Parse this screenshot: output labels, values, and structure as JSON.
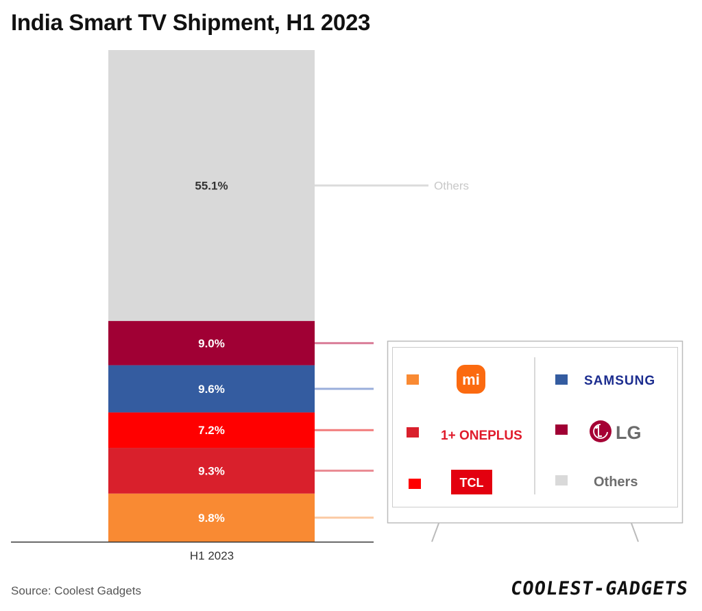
{
  "title": "India Smart TV Shipment, H1 2023",
  "source": "Source: Coolest Gadgets",
  "watermark": {
    "part1": "COOLEST",
    "sep": "-",
    "part2": "GADGETS"
  },
  "chart_data": {
    "type": "bar",
    "stacked": true,
    "categories": [
      "H1 2023"
    ],
    "unit": "%",
    "series": [
      {
        "name": "Xiaomi",
        "values": [
          9.8
        ],
        "label": "9.8%",
        "color": "#f98a33",
        "legend": "mi"
      },
      {
        "name": "OnePlus",
        "values": [
          9.3
        ],
        "label": "9.3%",
        "color": "#d9202c",
        "legend": "1+ ONEPLUS"
      },
      {
        "name": "TCL",
        "values": [
          7.2
        ],
        "label": "7.2%",
        "color": "#ff0000",
        "legend": "TCL"
      },
      {
        "name": "Samsung",
        "values": [
          9.6
        ],
        "label": "9.6%",
        "color": "#345ca0",
        "legend": "SAMSUNG"
      },
      {
        "name": "LG",
        "values": [
          9.0
        ],
        "label": "9.0%",
        "color": "#a00034",
        "legend": "LG"
      },
      {
        "name": "Others",
        "values": [
          55.1
        ],
        "label": "55.1%",
        "color": "#d9d9d9",
        "legend": "Others"
      }
    ],
    "leader_colors": {
      "Xiaomi": "#fbc9a2",
      "OnePlus": "#e98a92",
      "TCL": "#f27b7b",
      "Samsung": "#9aaedb",
      "LG": "#d97c97",
      "Others": "#dcdcdc"
    },
    "outer_label": {
      "series": "Others",
      "text": "Others",
      "color": "#c8c8c8"
    },
    "ylim": [
      0,
      100
    ]
  }
}
